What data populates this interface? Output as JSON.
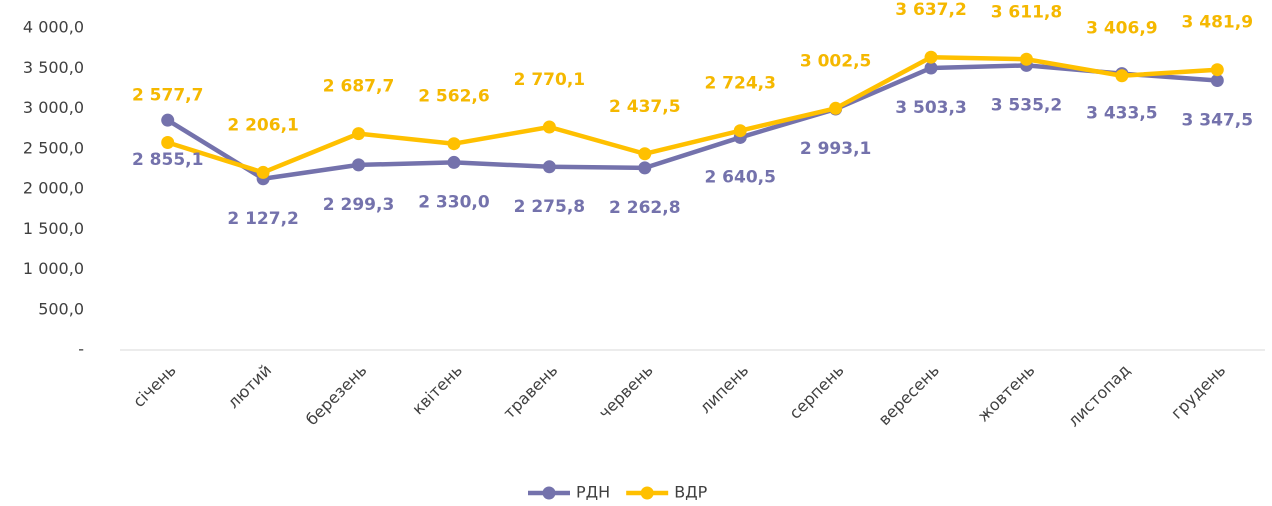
{
  "chart_data": {
    "type": "line",
    "categories": [
      "січень",
      "лютий",
      "березень",
      "квітень",
      "травень",
      "червень",
      "липень",
      "серпень",
      "вересень",
      "жовтень",
      "листопад",
      "грудень"
    ],
    "series": [
      {
        "name": "РДН",
        "color": "#7472ac",
        "values": [
          2855.1,
          2127.2,
          2299.3,
          2330.0,
          2275.8,
          2262.8,
          2640.5,
          2993.1,
          3503.3,
          3535.2,
          3433.5,
          3347.5
        ],
        "value_labels": [
          "2 855,1",
          "2 127,2",
          "2 299,3",
          "2 330,0",
          "2 275,8",
          "2 262,8",
          "2 640,5",
          "2 993,1",
          "3 503,3",
          "3 535,2",
          "3 433,5",
          "3 347,5"
        ]
      },
      {
        "name": "ВДР",
        "color": "#ffc000",
        "values": [
          2577.7,
          2206.1,
          2687.7,
          2562.6,
          2770.1,
          2437.5,
          2724.3,
          3002.5,
          3637.2,
          3611.8,
          3406.9,
          3481.9
        ],
        "value_labels": [
          "2 577,7",
          "2 206,1",
          "2 687,7",
          "2 562,6",
          "2 770,1",
          "2 437,5",
          "2 724,3",
          "3 002,5",
          "3 637,2",
          "3 611,8",
          "3 406,9",
          "3 481,9"
        ]
      }
    ],
    "ylim": [
      0,
      4000
    ],
    "yticks": [
      {
        "value": 0,
        "label": "-"
      },
      {
        "value": 500,
        "label": "500,0"
      },
      {
        "value": 1000,
        "label": "1 000,0"
      },
      {
        "value": 1500,
        "label": "1 500,0"
      },
      {
        "value": 2000,
        "label": "2 000,0"
      },
      {
        "value": 2500,
        "label": "2 500,0"
      },
      {
        "value": 3000,
        "label": "3 000,0"
      },
      {
        "value": 3500,
        "label": "3 500,0"
      },
      {
        "value": 4000,
        "label": "4 000,0"
      }
    ],
    "grid": false,
    "legend": "bottom"
  }
}
